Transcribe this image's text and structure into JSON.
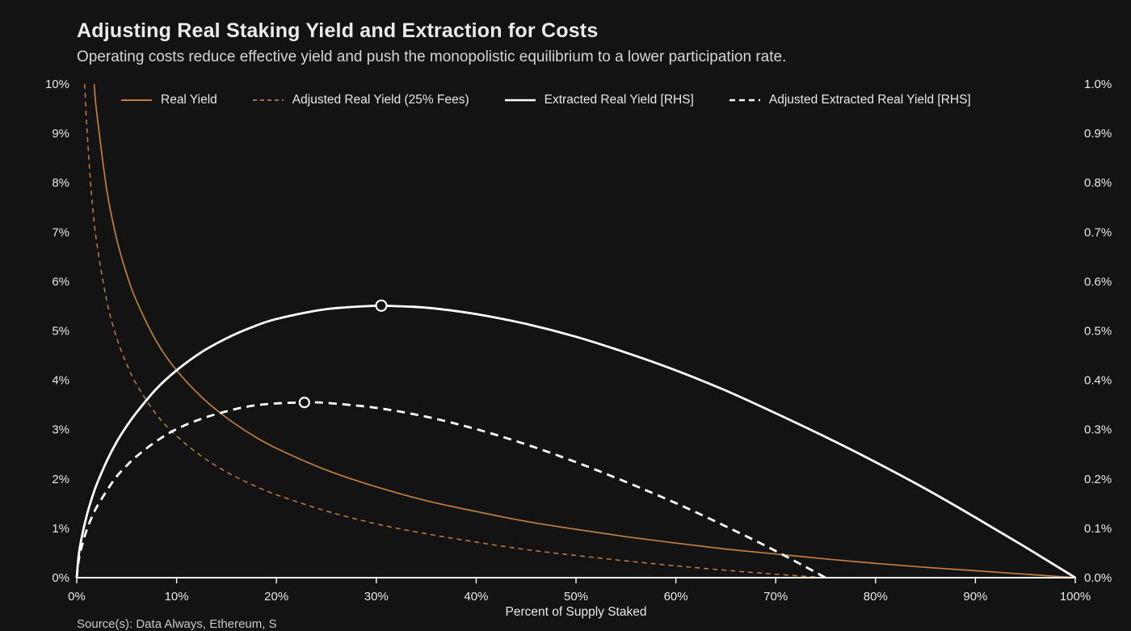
{
  "page": {
    "source_note": "Source(s): Data Always, Ethereum, S"
  },
  "colors": {
    "background": "#131313",
    "orange": "#c17e3d",
    "white": "#ffffff",
    "text": "#e8e8e8",
    "axis": "#ffffff"
  },
  "chart_data": {
    "type": "line",
    "title": "Adjusting Real Staking Yield and Extraction for Costs",
    "subtitle": "Operating costs reduce effective yield and push the monopolistic equilibrium to a lower participation rate.",
    "xlabel": "Percent of Supply Staked",
    "grid": false,
    "legend_position": "top",
    "x_axis": {
      "min": 0,
      "max": 100,
      "tick_values": [
        0,
        10,
        20,
        30,
        40,
        50,
        60,
        70,
        80,
        90,
        100
      ],
      "tick_labels": [
        "0%",
        "10%",
        "20%",
        "30%",
        "40%",
        "50%",
        "60%",
        "70%",
        "80%",
        "90%",
        "100%"
      ]
    },
    "y_left": {
      "min": 0,
      "max": 10,
      "tick_values": [
        0,
        1,
        2,
        3,
        4,
        5,
        6,
        7,
        8,
        9,
        10
      ],
      "tick_labels": [
        "0%",
        "1%",
        "2%",
        "3%",
        "4%",
        "5%",
        "6%",
        "7%",
        "8%",
        "9%",
        "10%"
      ]
    },
    "y_right": {
      "min": 0,
      "max": 1,
      "tick_values": [
        0,
        0.1,
        0.2,
        0.3,
        0.4,
        0.5,
        0.6,
        0.7,
        0.8,
        0.9,
        1.0
      ],
      "tick_labels": [
        "0.0%",
        "0.1%",
        "0.2%",
        "0.3%",
        "0.4%",
        "0.5%",
        "0.6%",
        "0.7%",
        "0.8%",
        "0.9%",
        "1.0%"
      ]
    },
    "legend": [
      {
        "label": "Real Yield",
        "color": "#c17e3d",
        "dash": "solid"
      },
      {
        "label": "Adjusted Real Yield (25% Fees)",
        "color": "#c17e3d",
        "dash": "dashed"
      },
      {
        "label": "Extracted Real Yield [RHS]",
        "color": "#ffffff",
        "dash": "solid"
      },
      {
        "label": "Adjusted Extracted Real Yield [RHS]",
        "color": "#ffffff",
        "dash": "dashed"
      }
    ],
    "series": [
      {
        "name": "Real Yield",
        "axis": "left",
        "color": "#c17e3d",
        "style": "solid",
        "width": 1.7,
        "x": [
          1.75,
          2,
          3,
          4,
          5,
          6,
          8,
          10,
          12.5,
          15,
          17.5,
          20,
          25,
          30,
          35,
          40,
          45,
          50,
          55,
          60,
          65,
          70,
          75,
          80,
          85,
          90,
          95,
          100
        ],
        "y": [
          10,
          9.43,
          7.86,
          6.86,
          6.15,
          5.6,
          4.78,
          4.2,
          3.66,
          3.24,
          2.9,
          2.62,
          2.18,
          1.84,
          1.56,
          1.34,
          1.14,
          0.98,
          0.83,
          0.7,
          0.58,
          0.48,
          0.38,
          0.29,
          0.21,
          0.14,
          0.07,
          0
        ]
      },
      {
        "name": "Adjusted Real Yield (25% Fees)",
        "axis": "left",
        "color": "#c17e3d",
        "style": "dashed",
        "width": 1.5,
        "dash": "6 5",
        "x": [
          0.8,
          1,
          1.5,
          2,
          3,
          4,
          5,
          6,
          8,
          10,
          12.5,
          15,
          17.5,
          20,
          25,
          30,
          35,
          40,
          45,
          50,
          55,
          60,
          65,
          70,
          75
        ],
        "y": [
          10,
          9.15,
          7.71,
          6.79,
          5.61,
          4.86,
          4.33,
          3.91,
          3.3,
          2.87,
          2.46,
          2.14,
          1.89,
          1.68,
          1.35,
          1.09,
          0.89,
          0.72,
          0.57,
          0.45,
          0.34,
          0.24,
          0.15,
          0.07,
          0
        ]
      },
      {
        "name": "Extracted Real Yield [RHS]",
        "axis": "right",
        "color": "#ffffff",
        "style": "solid",
        "width": 2.8,
        "x": [
          0,
          0.2,
          0.5,
          1,
          1.5,
          2,
          3,
          4,
          5,
          6,
          8,
          10,
          12.5,
          15,
          17.5,
          20,
          25,
          30,
          30.5,
          35,
          40,
          45,
          50,
          55,
          60,
          65,
          70,
          75,
          80,
          85,
          90,
          95,
          100
        ],
        "y": [
          0,
          0.046,
          0.082,
          0.126,
          0.16,
          0.189,
          0.236,
          0.275,
          0.307,
          0.335,
          0.383,
          0.42,
          0.457,
          0.485,
          0.507,
          0.524,
          0.544,
          0.551,
          0.551,
          0.547,
          0.534,
          0.514,
          0.488,
          0.456,
          0.42,
          0.379,
          0.333,
          0.285,
          0.234,
          0.18,
          0.122,
          0.062,
          0
        ],
        "marker": {
          "x": 30.5,
          "y": 0.551,
          "radius": 6.5
        }
      },
      {
        "name": "Adjusted Extracted Real Yield [RHS]",
        "axis": "right",
        "color": "#ffffff",
        "style": "dashed",
        "width": 2.8,
        "dash": "10 7",
        "x": [
          0,
          0.2,
          0.5,
          1,
          1.5,
          2,
          3,
          4,
          5,
          6,
          8,
          10,
          12.5,
          15,
          17.5,
          20,
          22.8,
          25,
          30,
          35,
          40,
          45,
          50,
          55,
          60,
          65,
          70,
          75
        ],
        "y": [
          0,
          0.036,
          0.063,
          0.097,
          0.122,
          0.143,
          0.176,
          0.205,
          0.227,
          0.246,
          0.277,
          0.301,
          0.322,
          0.337,
          0.348,
          0.353,
          0.355,
          0.354,
          0.344,
          0.326,
          0.301,
          0.27,
          0.234,
          0.194,
          0.151,
          0.104,
          0.054,
          0
        ],
        "marker": {
          "x": 22.8,
          "y": 0.355,
          "radius": 6
        }
      }
    ]
  }
}
